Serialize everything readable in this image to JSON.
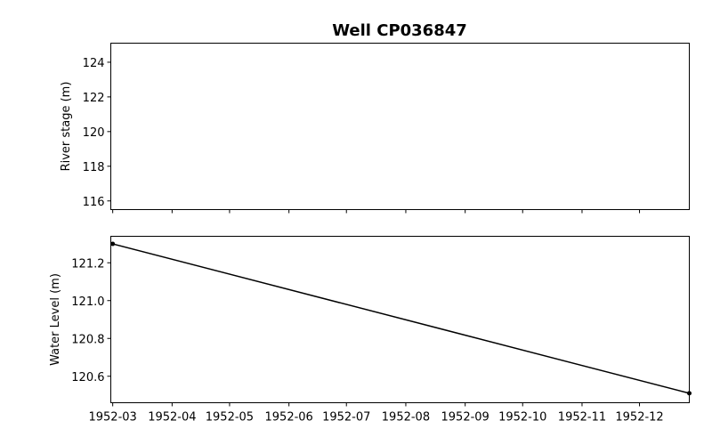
{
  "chart_data": [
    {
      "type": "line",
      "title": "Well CP036847",
      "xlabel": "",
      "ylabel": "River stage (m)",
      "ylim": [
        115.5,
        125.1
      ],
      "yticks": [
        116,
        118,
        120,
        122,
        124
      ],
      "ytick_labels": [
        "116",
        "118",
        "120",
        "122",
        "124"
      ],
      "xlim": [
        "1952-02-29",
        "1952-12-27"
      ],
      "x": [],
      "series": [],
      "show_xtick_labels": false,
      "grid": false
    },
    {
      "type": "line",
      "title": "",
      "xlabel": "",
      "ylabel": "Water Level (m)",
      "ylim": [
        120.46,
        121.34
      ],
      "yticks": [
        120.6,
        120.8,
        121.0,
        121.2
      ],
      "ytick_labels": [
        "120.6",
        "120.8",
        "121.0",
        "121.2"
      ],
      "xlim": [
        "1952-02-29",
        "1952-12-27"
      ],
      "series": [
        {
          "x": [
            "1952-03-01",
            "1952-12-27"
          ],
          "values": [
            121.3,
            120.51
          ],
          "color": "#000000",
          "marker": "dot"
        }
      ],
      "grid": false
    }
  ],
  "shared_xticks": [
    "1952-03-01",
    "1952-04-01",
    "1952-05-01",
    "1952-06-01",
    "1952-07-01",
    "1952-08-01",
    "1952-09-01",
    "1952-10-01",
    "1952-11-01",
    "1952-12-01"
  ],
  "shared_xtick_labels": [
    "1952-03",
    "1952-04",
    "1952-05",
    "1952-06",
    "1952-07",
    "1952-08",
    "1952-09",
    "1952-10",
    "1952-11",
    "1952-12"
  ]
}
